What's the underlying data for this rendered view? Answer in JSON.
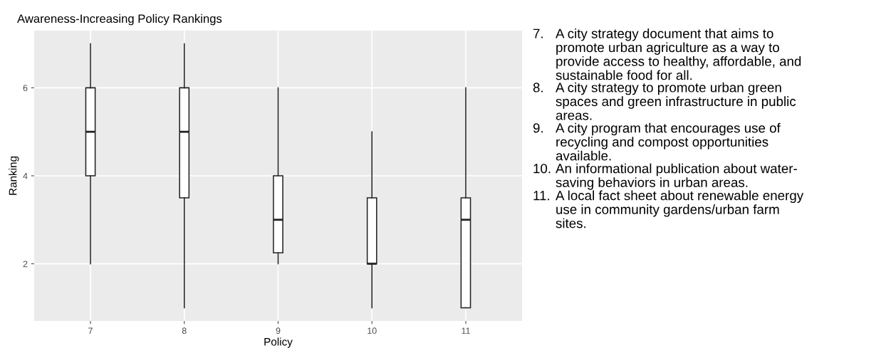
{
  "chart_data": {
    "type": "box",
    "title": "Awareness-Increasing Policy Rankings",
    "xlabel": "Policy",
    "ylabel": "Ranking",
    "categories": [
      "7",
      "8",
      "9",
      "10",
      "11"
    ],
    "boxes": [
      {
        "low": 2,
        "q1": 4,
        "median": 5,
        "q3": 6,
        "high": 7
      },
      {
        "low": 1,
        "q1": 3.5,
        "median": 5,
        "q3": 6,
        "high": 7
      },
      {
        "low": 2,
        "q1": 2.25,
        "median": 3,
        "q3": 4,
        "high": 6
      },
      {
        "low": 1,
        "q1": 2,
        "median": 2,
        "q3": 3.5,
        "high": 5
      },
      {
        "low": 1,
        "q1": 1,
        "median": 3,
        "q3": 3.5,
        "high": 6
      }
    ],
    "ylim": [
      0.7,
      7.3
    ],
    "yticks": [
      2,
      4,
      6
    ],
    "grid": true,
    "annotations": [
      "7. A city strategy document that aims to\npromote urban agriculture as a way to\nprovide access to healthy, affordable, and\nsustainable food for all.",
      "8. A city strategy to promote urban green\nspaces and green infrastructure in public\nareas.",
      "9. A city program that encourages use of\nrecycling and compost opportunities\navailable.",
      "10. An informational publication about water-\nsaving behaviors in urban areas.",
      "11. A local fact sheet about renewable energy\nuse in community gardens/urban farm\nsites."
    ]
  }
}
